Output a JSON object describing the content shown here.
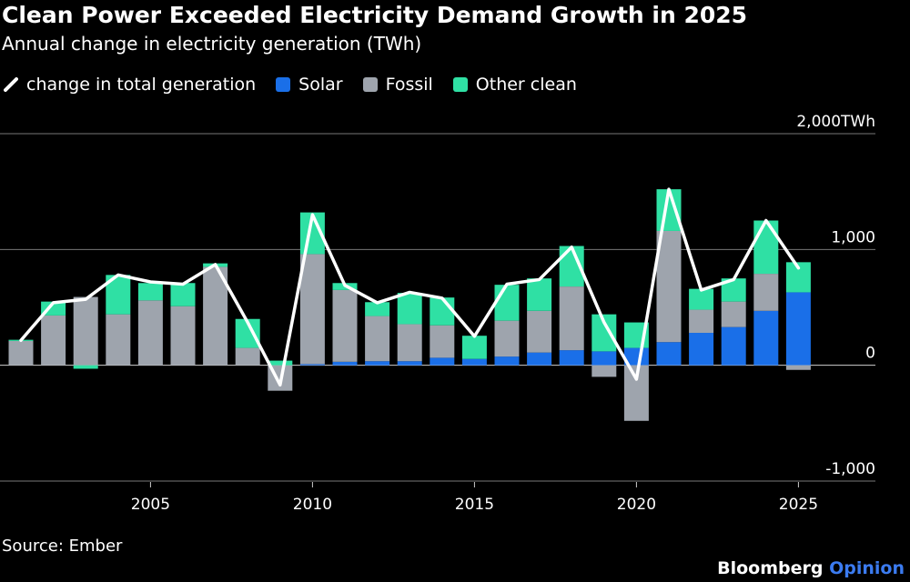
{
  "title": "Clean Power Exceeded Electricity Demand Growth in 2025",
  "subtitle": "Annual change in electricity generation (TWh)",
  "source": "Source: Ember",
  "brand": {
    "name": "Bloomberg",
    "suffix": "Opinion"
  },
  "colors": {
    "background": "#000000",
    "solar": "#1a6fe8",
    "fossil": "#9ea4ad",
    "other_clean": "#2fe0a4",
    "total_line": "#ffffff",
    "gridline": "#777777",
    "brand_accent": "#3b7bf0"
  },
  "chart_data": {
    "type": "bar",
    "stacked": true,
    "title": "Clean Power Exceeded Electricity Demand Growth in 2025",
    "subtitle": "Annual change in electricity generation (TWh)",
    "xlabel": "",
    "ylabel": "",
    "ylim": [
      -1000,
      2000
    ],
    "y_ticks": [
      -1000,
      0,
      1000,
      2000
    ],
    "y_tick_labels": [
      "-1,000",
      "0",
      "1,000",
      "2,000TWh"
    ],
    "x_ticks": [
      2005,
      2010,
      2015,
      2020,
      2025
    ],
    "x_tick_labels": [
      "2005",
      "2010",
      "2015",
      "2020",
      "2025"
    ],
    "grid": true,
    "legend_position": "top-left",
    "x": [
      2001,
      2002,
      2003,
      2004,
      2005,
      2006,
      2007,
      2008,
      2009,
      2010,
      2011,
      2012,
      2013,
      2014,
      2015,
      2016,
      2017,
      2018,
      2019,
      2020,
      2021,
      2022,
      2023,
      2024,
      2025
    ],
    "series": [
      {
        "name": "Solar",
        "type": "bar",
        "values": [
          0,
          0,
          0,
          0,
          0,
          0,
          0,
          0,
          0,
          10,
          30,
          35,
          35,
          65,
          55,
          75,
          110,
          130,
          120,
          150,
          200,
          280,
          330,
          470,
          630
        ]
      },
      {
        "name": "Fossil",
        "type": "bar",
        "values": [
          210,
          430,
          590,
          440,
          560,
          510,
          850,
          150,
          -220,
          950,
          620,
          390,
          320,
          280,
          0,
          310,
          360,
          550,
          -100,
          -480,
          960,
          200,
          220,
          320,
          -40
        ]
      },
      {
        "name": "Other clean",
        "type": "bar",
        "values": [
          10,
          120,
          -30,
          340,
          150,
          200,
          30,
          250,
          40,
          360,
          60,
          120,
          270,
          240,
          200,
          310,
          280,
          350,
          320,
          220,
          360,
          180,
          200,
          460,
          260
        ]
      },
      {
        "name": "change in total generation",
        "type": "line",
        "values": [
          215,
          540,
          570,
          780,
          720,
          700,
          870,
          370,
          -170,
          1300,
          690,
          540,
          630,
          580,
          250,
          700,
          740,
          1020,
          370,
          -120,
          1520,
          650,
          740,
          1250,
          840
        ]
      }
    ]
  }
}
